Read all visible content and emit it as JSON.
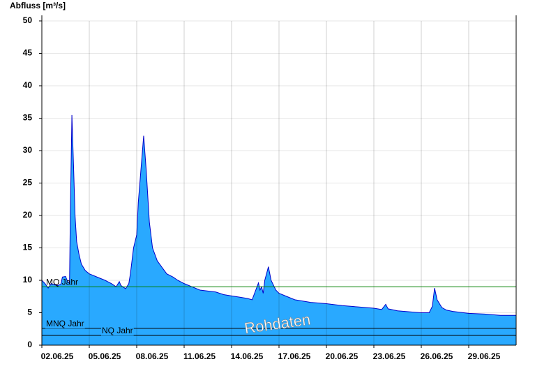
{
  "chart_data": {
    "type": "area",
    "y_axis_label": "Abfluss [m³/s]",
    "watermark": "Rohdaten",
    "xlim": [
      0,
      30
    ],
    "xticks": [
      {
        "value": 0,
        "label": "02.06.25"
      },
      {
        "value": 3,
        "label": "05.06.25"
      },
      {
        "value": 6,
        "label": "08.06.25"
      },
      {
        "value": 9,
        "label": "11.06.25"
      },
      {
        "value": 12,
        "label": "14.06.25"
      },
      {
        "value": 15,
        "label": "17.06.25"
      },
      {
        "value": 18,
        "label": "20.06.25"
      },
      {
        "value": 21,
        "label": "23.06.25"
      },
      {
        "value": 24,
        "label": "26.06.25"
      },
      {
        "value": 27,
        "label": "29.06.25"
      }
    ],
    "ylim": [
      0,
      50
    ],
    "yticks": [
      0,
      5,
      10,
      15,
      20,
      25,
      30,
      35,
      40,
      45,
      50
    ],
    "grid": true,
    "series": [
      {
        "name": "Abfluss",
        "color": "#29a9ff",
        "line_color": "#0000cc",
        "x": [
          0,
          0.2,
          0.4,
          0.6,
          0.8,
          1.0,
          1.2,
          1.3,
          1.5,
          1.6,
          1.75,
          1.8,
          1.9,
          2.0,
          2.1,
          2.2,
          2.35,
          2.5,
          2.75,
          3.0,
          3.5,
          4.0,
          4.4,
          4.7,
          4.9,
          5.0,
          5.3,
          5.5,
          5.6,
          5.8,
          6.0,
          6.1,
          6.44,
          6.6,
          6.8,
          7.0,
          7.3,
          7.6,
          7.9,
          8.3,
          8.6,
          9.0,
          9.5,
          10,
          11,
          11.5,
          12,
          12.5,
          13,
          13.3,
          13.7,
          13.8,
          13.9,
          14.0,
          14.1,
          14.33,
          14.5,
          14.8,
          15.0,
          15.5,
          16,
          17,
          18,
          19,
          20,
          21,
          21.5,
          21.75,
          21.9,
          22.5,
          23.5,
          24,
          24.5,
          24.7,
          24.84,
          25.0,
          25.3,
          25.6,
          26,
          27,
          28,
          29,
          30
        ],
        "values": [
          10.0,
          9.5,
          8.8,
          9.5,
          9.3,
          9.2,
          9.4,
          10.5,
          10.6,
          10.0,
          9.5,
          20,
          35.5,
          28,
          20,
          16,
          14,
          12.5,
          11.5,
          11.0,
          10.5,
          10.0,
          9.5,
          9.0,
          9.8,
          9.2,
          8.7,
          9.5,
          11,
          15,
          17,
          22,
          32.3,
          27,
          19,
          15,
          13,
          12,
          11,
          10.5,
          10.0,
          9.5,
          9.0,
          8.5,
          8.2,
          7.8,
          7.6,
          7.4,
          7.2,
          7.0,
          9.6,
          8.5,
          9.0,
          8.0,
          10,
          12.1,
          10,
          8.5,
          8.0,
          7.5,
          7.0,
          6.6,
          6.4,
          6.1,
          5.9,
          5.7,
          5.5,
          6.3,
          5.6,
          5.3,
          5.1,
          5.0,
          5.0,
          6,
          8.8,
          7,
          5.8,
          5.4,
          5.2,
          4.9,
          4.8,
          4.6,
          4.6
        ]
      }
    ],
    "reference_lines": [
      {
        "name": "MQ Jahr",
        "value": 9,
        "color": "#008000"
      },
      {
        "name": "MNQ Jahr",
        "value": 2.6,
        "color": "#000000"
      },
      {
        "name": "NQ Jahr",
        "value": 1.5,
        "color": "#000000"
      }
    ]
  }
}
